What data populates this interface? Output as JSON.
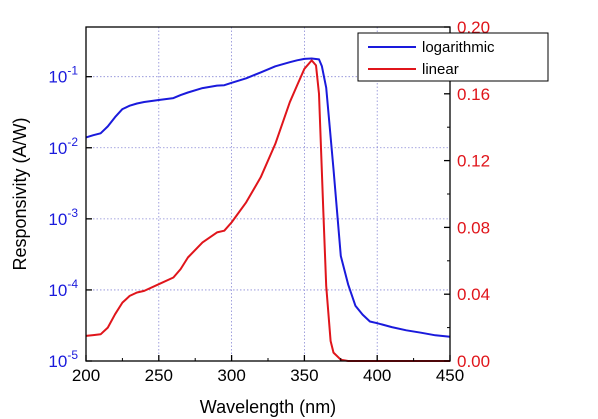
{
  "chart_data": {
    "type": "line",
    "title": "",
    "xlabel": "Wavelength (nm)",
    "ylabel": "Responsivity (A/W)",
    "xlim": [
      200,
      450
    ],
    "ylim_left": [
      1e-05,
      0.5
    ],
    "ylim_right": [
      0,
      0.2
    ],
    "left_scale": "log",
    "right_scale": "linear",
    "grid": true,
    "legend_position": "top-right",
    "x_ticks": [
      "200",
      "250",
      "300",
      "350",
      "400",
      "450"
    ],
    "left_ticks": [
      {
        "base": "10",
        "exp": "-5",
        "value": 1e-05
      },
      {
        "base": "10",
        "exp": "-4",
        "value": 0.0001
      },
      {
        "base": "10",
        "exp": "-3",
        "value": 0.001
      },
      {
        "base": "10",
        "exp": "-2",
        "value": 0.01
      },
      {
        "base": "10",
        "exp": "-1",
        "value": 0.1
      }
    ],
    "right_ticks": [
      "0.00",
      "0.04",
      "0.08",
      "0.12",
      "0.16",
      "0.20"
    ],
    "series": [
      {
        "name": "logarithmic",
        "axis": "left",
        "color": "#1a1adc",
        "x": [
          200,
          205,
          210,
          215,
          220,
          225,
          230,
          235,
          240,
          250,
          260,
          265,
          270,
          280,
          290,
          295,
          300,
          310,
          320,
          330,
          340,
          345,
          350,
          355,
          360,
          362,
          365,
          370,
          375,
          380,
          385,
          390,
          395,
          400,
          410,
          420,
          430,
          440,
          450
        ],
        "y": [
          0.014,
          0.015,
          0.016,
          0.02,
          0.027,
          0.035,
          0.039,
          0.042,
          0.044,
          0.047,
          0.05,
          0.055,
          0.06,
          0.069,
          0.075,
          0.076,
          0.082,
          0.095,
          0.115,
          0.14,
          0.16,
          0.17,
          0.178,
          0.18,
          0.175,
          0.14,
          0.07,
          0.005,
          0.0003,
          0.00012,
          6e-05,
          4.5e-05,
          3.6e-05,
          3.4e-05,
          3e-05,
          2.7e-05,
          2.5e-05,
          2.3e-05,
          2.2e-05
        ]
      },
      {
        "name": "linear",
        "axis": "right",
        "color": "#e0151b",
        "x": [
          200,
          205,
          210,
          215,
          220,
          225,
          230,
          235,
          240,
          250,
          260,
          265,
          270,
          280,
          290,
          295,
          300,
          310,
          320,
          330,
          340,
          345,
          350,
          355,
          358,
          360,
          363,
          365,
          368,
          370,
          375,
          380,
          390,
          400,
          410,
          420,
          430,
          440,
          450
        ],
        "y": [
          0.015,
          0.0155,
          0.016,
          0.02,
          0.028,
          0.035,
          0.039,
          0.041,
          0.042,
          0.046,
          0.05,
          0.055,
          0.062,
          0.071,
          0.077,
          0.078,
          0.083,
          0.095,
          0.11,
          0.13,
          0.155,
          0.165,
          0.175,
          0.18,
          0.177,
          0.16,
          0.09,
          0.045,
          0.012,
          0.005,
          0.0008,
          0.0,
          0.0,
          0.0,
          0.0,
          0.0,
          0.0,
          0.0,
          0.0
        ]
      }
    ]
  }
}
